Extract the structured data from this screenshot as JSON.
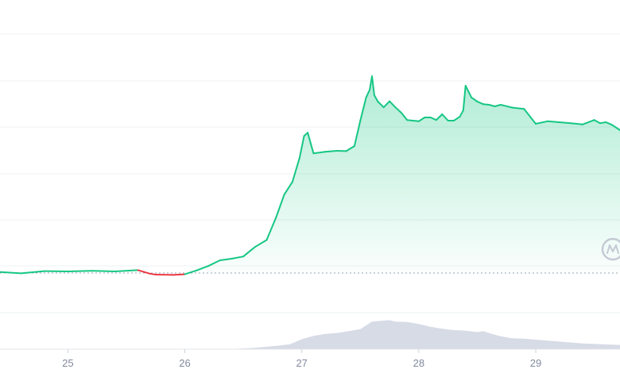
{
  "chart_data": {
    "type": "area",
    "grid": true,
    "x_tick_labels": [
      "25",
      "26",
      "27",
      "28",
      "29"
    ],
    "x_ticks": [
      25,
      26,
      27,
      28,
      29
    ],
    "xlim": [
      24.42,
      29.72
    ],
    "ylim": [
      0,
      1
    ],
    "baseline_value": 0.24,
    "series": [
      {
        "role": "price",
        "style": "line+area",
        "up_color": "#16c784",
        "down_color": "#ea3943",
        "x": [
          24.42,
          24.6,
          24.8,
          25.0,
          25.2,
          25.4,
          25.6,
          25.7,
          25.75,
          25.9,
          26.0,
          26.1,
          26.2,
          26.3,
          26.4,
          26.5,
          26.6,
          26.7,
          26.78,
          26.85,
          26.92,
          26.98,
          27.02,
          27.05,
          27.1,
          27.2,
          27.3,
          27.38,
          27.45,
          27.5,
          27.55,
          27.58,
          27.6,
          27.62,
          27.65,
          27.7,
          27.75,
          27.8,
          27.85,
          27.9,
          27.95,
          28.0,
          28.05,
          28.1,
          28.15,
          28.2,
          28.25,
          28.3,
          28.35,
          28.38,
          28.4,
          28.45,
          28.5,
          28.55,
          28.6,
          28.65,
          28.7,
          28.8,
          28.9,
          29.0,
          29.1,
          29.2,
          29.3,
          29.4,
          29.5,
          29.55,
          29.6,
          29.65,
          29.72
        ],
        "y": [
          0.243,
          0.239,
          0.246,
          0.245,
          0.247,
          0.245,
          0.249,
          0.238,
          0.235,
          0.234,
          0.236,
          0.248,
          0.262,
          0.28,
          0.285,
          0.292,
          0.322,
          0.344,
          0.415,
          0.487,
          0.527,
          0.602,
          0.672,
          0.682,
          0.617,
          0.622,
          0.625,
          0.624,
          0.64,
          0.72,
          0.793,
          0.817,
          0.86,
          0.8,
          0.78,
          0.762,
          0.781,
          0.762,
          0.745,
          0.722,
          0.72,
          0.718,
          0.73,
          0.73,
          0.722,
          0.74,
          0.72,
          0.72,
          0.732,
          0.752,
          0.83,
          0.793,
          0.78,
          0.772,
          0.77,
          0.765,
          0.77,
          0.761,
          0.757,
          0.71,
          0.718,
          0.715,
          0.712,
          0.708,
          0.722,
          0.712,
          0.715,
          0.707,
          0.69
        ],
        "down_ranges": [
          [
            25.65,
            26.02
          ]
        ]
      },
      {
        "role": "volume",
        "style": "area",
        "color": "#c9cfdd",
        "x": [
          24.42,
          26.0,
          26.2,
          26.4,
          26.6,
          26.8,
          26.9,
          27.0,
          27.1,
          27.2,
          27.3,
          27.4,
          27.5,
          27.55,
          27.6,
          27.65,
          27.7,
          27.75,
          27.8,
          27.9,
          28.0,
          28.1,
          28.2,
          28.3,
          28.4,
          28.5,
          28.55,
          28.6,
          28.7,
          28.8,
          28.9,
          29.0,
          29.2,
          29.4,
          29.6,
          29.72
        ],
        "y": [
          0.0,
          0.0,
          0.0,
          0.005,
          0.03,
          0.075,
          0.105,
          0.21,
          0.28,
          0.32,
          0.34,
          0.38,
          0.42,
          0.5,
          0.58,
          0.59,
          0.6,
          0.61,
          0.58,
          0.57,
          0.53,
          0.47,
          0.43,
          0.4,
          0.39,
          0.36,
          0.38,
          0.34,
          0.27,
          0.23,
          0.22,
          0.2,
          0.16,
          0.12,
          0.1,
          0.09
        ]
      }
    ]
  },
  "watermark": {
    "icon": "coinmarketcap-logo-icon",
    "color": "#c4c9d4"
  }
}
